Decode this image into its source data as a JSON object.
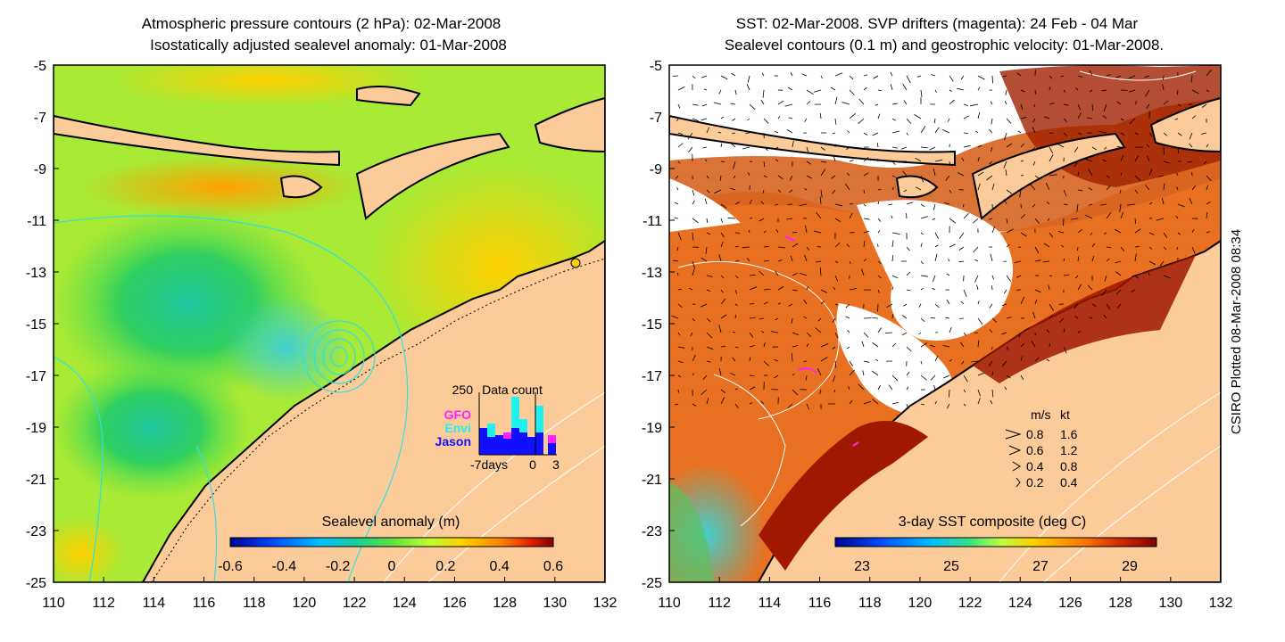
{
  "left_panel": {
    "title_line1": "Atmospheric pressure contours (2 hPa): 02-Mar-2008",
    "title_line2": "Isostatically adjusted sealevel anomaly: 01-Mar-2008",
    "colorbar_label": "Sealevel anomaly (m)",
    "colorbar_ticks": [
      "-0.6",
      "-0.4",
      "-0.2",
      "0",
      "0.2",
      "0.4",
      "0.6"
    ],
    "inset": {
      "title": "Data count",
      "max_label": "250",
      "legend": [
        {
          "name": "GFO",
          "color": "#ff20ff"
        },
        {
          "name": "Envi",
          "color": "#20f0f0"
        },
        {
          "name": "Jason",
          "color": "#1010ff"
        }
      ],
      "x_labels": [
        "-7days",
        "0",
        "3"
      ]
    }
  },
  "right_panel": {
    "title_line1": "SST: 02-Mar-2008. SVP drifters (magenta): 24 Feb - 04 Mar",
    "title_line2": "Sealevel contours (0.1 m) and geostrophic velocity: 01-Mar-2008.",
    "colorbar_label": "3-day SST composite (deg C)",
    "colorbar_ticks": [
      "23",
      "25",
      "27",
      "29"
    ],
    "velocity_legend": {
      "header": [
        "m/s",
        "kt"
      ],
      "rows": [
        [
          "0.8",
          "1.6"
        ],
        [
          "0.6",
          "1.2"
        ],
        [
          "0.4",
          "0.8"
        ],
        [
          "0.2",
          "0.4"
        ]
      ]
    }
  },
  "axes": {
    "lat_ticks": [
      "-5",
      "-7",
      "-9",
      "-11",
      "-13",
      "-15",
      "-17",
      "-19",
      "-21",
      "-23",
      "-25"
    ],
    "lon_ticks": [
      "110",
      "112",
      "114",
      "116",
      "118",
      "120",
      "122",
      "124",
      "126",
      "128",
      "130",
      "132"
    ]
  },
  "credit": "CSIRO Plotted 08-Mar-2008 08:34",
  "colors": {
    "land": "#fccb9a",
    "coast": "#000000",
    "sla_colormap": [
      "#00008f",
      "#0040ff",
      "#00bfff",
      "#20d090",
      "#60e040",
      "#c0ff30",
      "#ffd000",
      "#ff8000",
      "#e02000",
      "#800000"
    ],
    "sst_colormap": [
      "#00008f",
      "#0050ff",
      "#00c0ff",
      "#40e080",
      "#c0ff40",
      "#ffd000",
      "#ff8000",
      "#d03000",
      "#800000"
    ]
  }
}
